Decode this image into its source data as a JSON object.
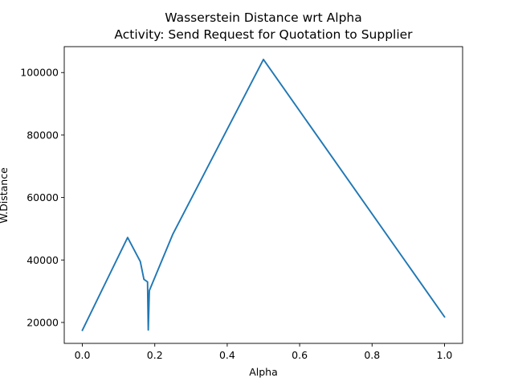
{
  "chart_data": {
    "type": "line",
    "title": "Wasserstein Distance wrt Alpha",
    "subtitle": "Activity: Send Request for Quotation to Supplier",
    "xlabel": "Alpha",
    "ylabel": "W.Distance",
    "xlim": [
      -0.05,
      1.05
    ],
    "ylim": [
      13300,
      108300
    ],
    "xticks": [
      {
        "value": 0.0,
        "label": "0.0"
      },
      {
        "value": 0.2,
        "label": "0.2"
      },
      {
        "value": 0.4,
        "label": "0.4"
      },
      {
        "value": 0.6,
        "label": "0.6"
      },
      {
        "value": 0.8,
        "label": "0.8"
      },
      {
        "value": 1.0,
        "label": "1.0"
      }
    ],
    "yticks": [
      {
        "value": 20000,
        "label": "20000"
      },
      {
        "value": 40000,
        "label": "40000"
      },
      {
        "value": 60000,
        "label": "60000"
      },
      {
        "value": 80000,
        "label": "80000"
      },
      {
        "value": 100000,
        "label": "100000"
      }
    ],
    "grid": false,
    "colors": {
      "line": "#1f77b4",
      "axes": "#000000",
      "background": "#ffffff"
    },
    "series": [
      {
        "x": [
          0.0,
          0.125,
          0.16,
          0.17,
          0.18,
          0.182,
          0.185,
          0.25,
          0.5,
          1.0
        ],
        "y": [
          17500,
          47200,
          39500,
          33800,
          33000,
          17600,
          30200,
          48300,
          104200,
          21800
        ]
      }
    ]
  }
}
